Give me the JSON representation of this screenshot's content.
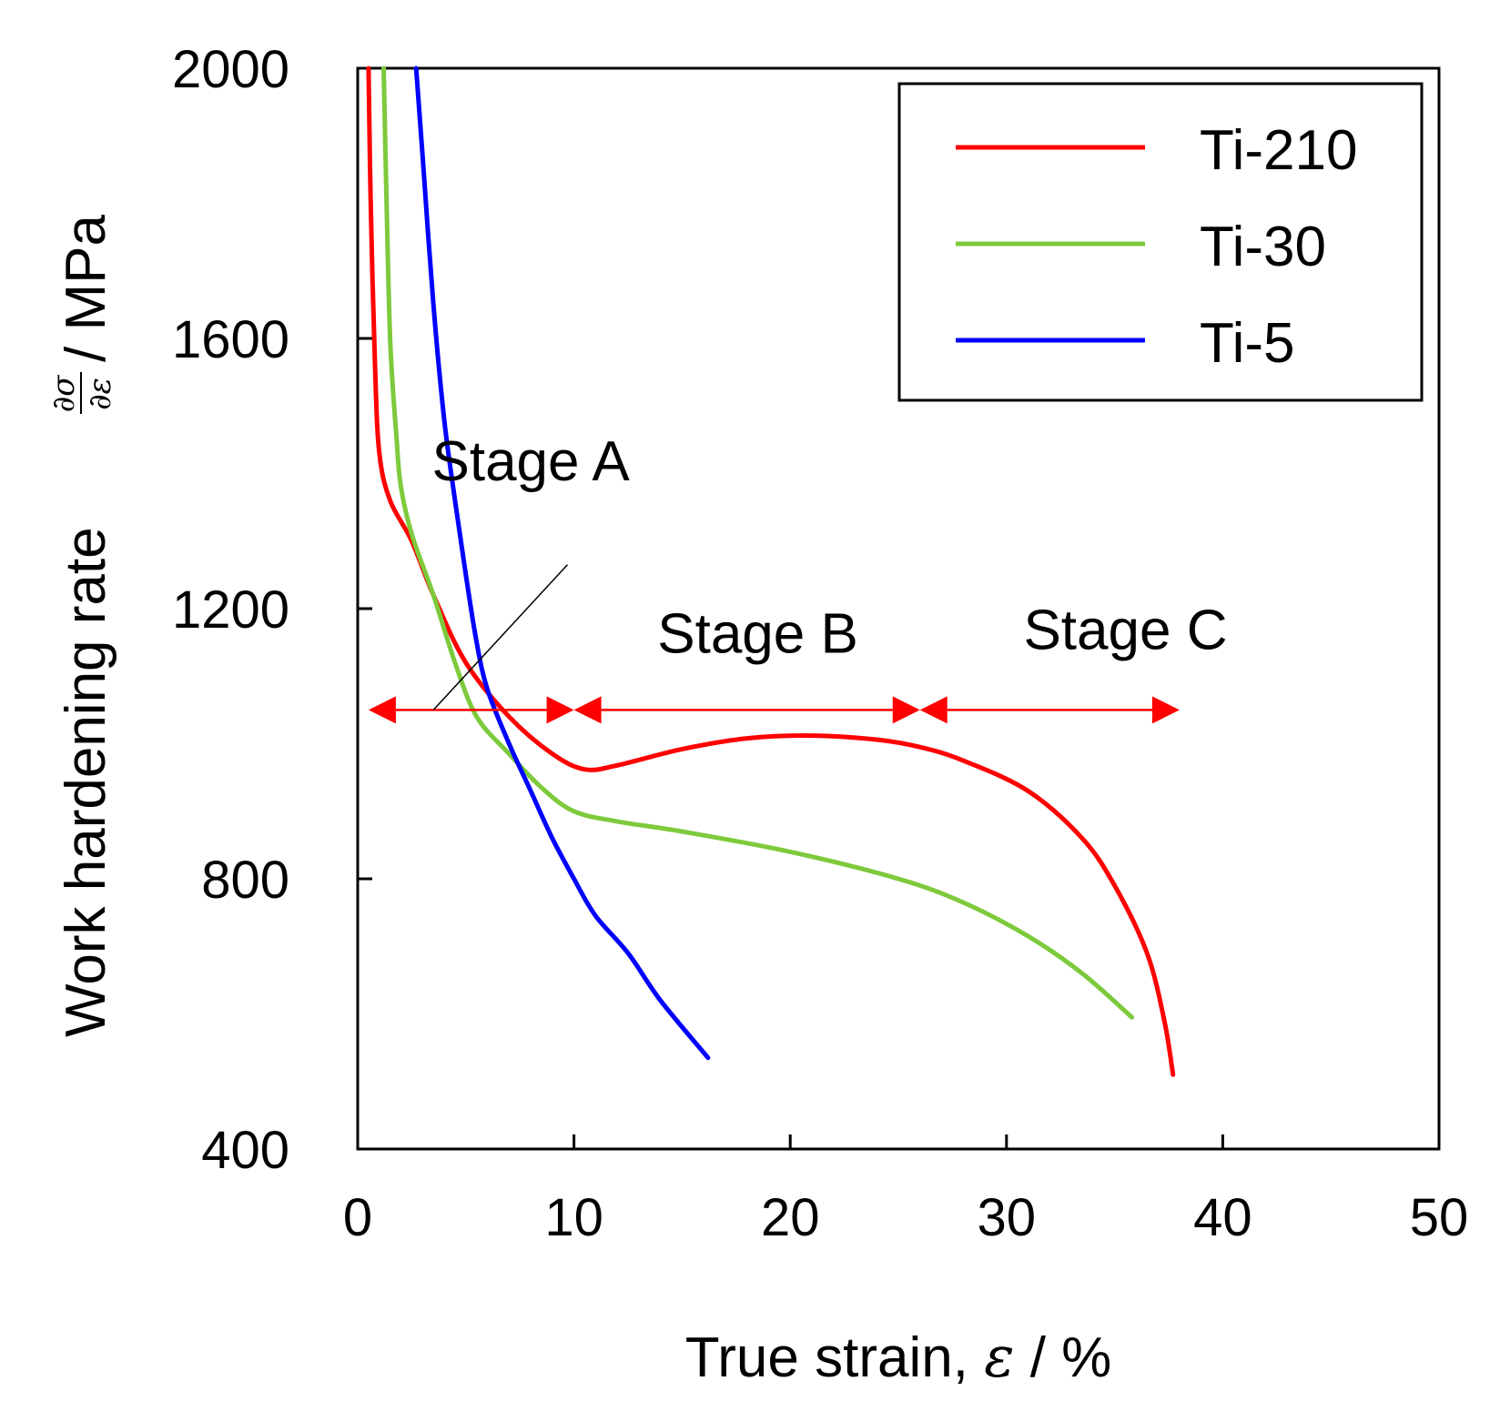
{
  "chart_data": {
    "type": "line",
    "title": "",
    "xlabel": "True strain, ",
    "xlabel_symbol": "ε",
    "xlabel_unit": " / %",
    "ylabel": "Work hardening rate ",
    "ylabel_unit": " / MPa",
    "ylabel_fraction": {
      "numerator": "∂σ",
      "denominator": "∂ε"
    },
    "xlim": [
      0,
      50
    ],
    "ylim": [
      400,
      2000
    ],
    "x_ticks": [
      0,
      10,
      20,
      30,
      40,
      50
    ],
    "x_tick_labels": [
      "0",
      "10",
      "20",
      "30",
      "40",
      "50"
    ],
    "y_ticks": [
      400,
      800,
      1200,
      1600,
      2000
    ],
    "y_tick_labels": [
      "400",
      "800",
      "1200",
      "1600",
      "2000"
    ],
    "grid": false,
    "legend_position": "top-right",
    "series": [
      {
        "name": "Ti-210",
        "color": "#ff0000",
        "points": [
          [
            0.5,
            2000
          ],
          [
            0.6,
            1800
          ],
          [
            0.8,
            1560
          ],
          [
            1.0,
            1430
          ],
          [
            1.5,
            1360
          ],
          [
            2.5,
            1300
          ],
          [
            3.5,
            1220
          ],
          [
            5.0,
            1120
          ],
          [
            7.0,
            1040
          ],
          [
            9.0,
            985
          ],
          [
            10.5,
            962
          ],
          [
            12.0,
            968
          ],
          [
            15.0,
            992
          ],
          [
            18.0,
            1008
          ],
          [
            21.0,
            1012
          ],
          [
            24.0,
            1006
          ],
          [
            26.0,
            995
          ],
          [
            28.0,
            975
          ],
          [
            31.0,
            930
          ],
          [
            33.5,
            860
          ],
          [
            35.0,
            790
          ],
          [
            36.5,
            690
          ],
          [
            37.3,
            590
          ],
          [
            37.7,
            510
          ]
        ]
      },
      {
        "name": "Ti-30",
        "color": "#7dca3c",
        "points": [
          [
            1.2,
            2000
          ],
          [
            1.3,
            1850
          ],
          [
            1.5,
            1600
          ],
          [
            1.8,
            1450
          ],
          [
            2.0,
            1380
          ],
          [
            2.5,
            1310
          ],
          [
            3.5,
            1220
          ],
          [
            4.5,
            1120
          ],
          [
            5.5,
            1040
          ],
          [
            7.0,
            985
          ],
          [
            8.5,
            935
          ],
          [
            10.0,
            900
          ],
          [
            12.0,
            885
          ],
          [
            15.0,
            870
          ],
          [
            20.0,
            840
          ],
          [
            25.0,
            800
          ],
          [
            28.0,
            765
          ],
          [
            31.0,
            715
          ],
          [
            33.5,
            660
          ],
          [
            35.8,
            595
          ]
        ]
      },
      {
        "name": "Ti-5",
        "color": "#0000ff",
        "points": [
          [
            2.7,
            2000
          ],
          [
            3.0,
            1870
          ],
          [
            3.5,
            1650
          ],
          [
            4.0,
            1480
          ],
          [
            4.5,
            1360
          ],
          [
            5.0,
            1250
          ],
          [
            5.5,
            1150
          ],
          [
            6.0,
            1080
          ],
          [
            7.0,
            1000
          ],
          [
            8.0,
            930
          ],
          [
            9.0,
            860
          ],
          [
            10.0,
            800
          ],
          [
            11.0,
            745
          ],
          [
            12.5,
            690
          ],
          [
            14.0,
            620
          ],
          [
            16.2,
            535
          ]
        ]
      }
    ],
    "annotations": [
      {
        "label": "Stage A",
        "range": [
          0.5,
          10
        ],
        "y": 1050,
        "label_anchor": [
          8,
          1390
        ],
        "leader_from": [
          3.5,
          1050
        ],
        "leader_to": [
          9.7,
          1265
        ]
      },
      {
        "label": "Stage B",
        "range": [
          10,
          26
        ],
        "y": 1050,
        "label_anchor": [
          18.5,
          1135
        ]
      },
      {
        "label": "Stage C",
        "range": [
          26,
          38
        ],
        "y": 1050,
        "label_anchor": [
          35.5,
          1140
        ]
      }
    ],
    "annotation_color": "#ff0000"
  }
}
